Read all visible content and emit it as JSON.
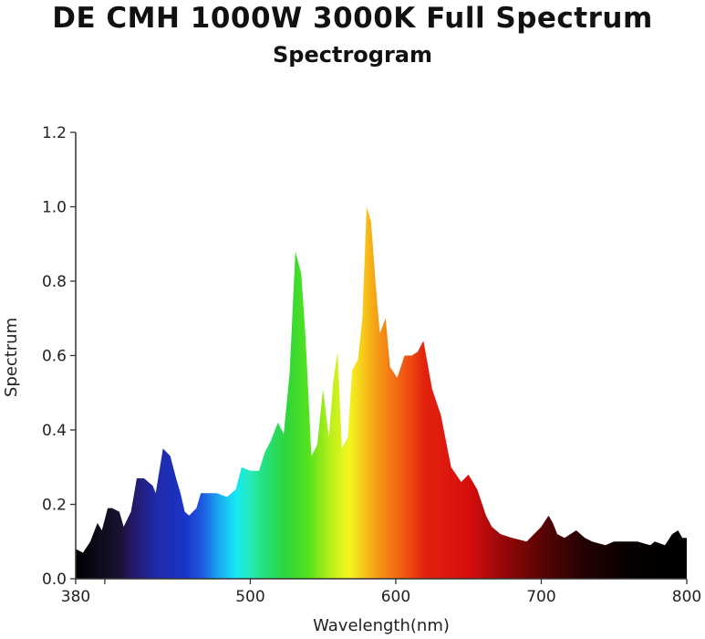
{
  "title": "DE CMH 1000W 3000K Full Spectrum",
  "subtitle": "Spectrogram",
  "chart_data": {
    "type": "area",
    "xlabel": "Wavelength(nm)",
    "ylabel": "Spectrum",
    "xlim": [
      380,
      800
    ],
    "ylim": [
      0,
      1.2
    ],
    "x_ticks": [
      "380",
      "500",
      "600",
      "700",
      "800"
    ],
    "y_ticks": [
      "0.0",
      "0.2",
      "0.4",
      "0.6",
      "0.8",
      "1.0",
      "1.2"
    ],
    "fill": "visible-spectrum gradient by wavelength",
    "grid": false,
    "series": [
      {
        "x": [
          380,
          385,
          390,
          395,
          398,
          402,
          405,
          410,
          413,
          418,
          422,
          427,
          433,
          435,
          440,
          445,
          449,
          452,
          455,
          458,
          463,
          466,
          471,
          477,
          484,
          490,
          494,
          500,
          506,
          510,
          514,
          519,
          523,
          527,
          531,
          535,
          538,
          542,
          546,
          550,
          554,
          557,
          560,
          563,
          567,
          570,
          574,
          577,
          580,
          583,
          586,
          589,
          593,
          596,
          601,
          606,
          611,
          615,
          619,
          625,
          631,
          638,
          645,
          650,
          656,
          662,
          666,
          672,
          680,
          690,
          700,
          705,
          708,
          711,
          716,
          720,
          724,
          730,
          735,
          744,
          750,
          759,
          766,
          775,
          778,
          785,
          790,
          794,
          797,
          800
        ],
        "y": [
          0.08,
          0.07,
          0.1,
          0.15,
          0.13,
          0.19,
          0.19,
          0.18,
          0.14,
          0.18,
          0.27,
          0.27,
          0.25,
          0.23,
          0.35,
          0.33,
          0.27,
          0.23,
          0.18,
          0.17,
          0.19,
          0.23,
          0.23,
          0.23,
          0.22,
          0.24,
          0.3,
          0.29,
          0.29,
          0.34,
          0.37,
          0.42,
          0.39,
          0.55,
          0.88,
          0.82,
          0.65,
          0.33,
          0.36,
          0.51,
          0.38,
          0.53,
          0.61,
          0.35,
          0.38,
          0.56,
          0.59,
          0.7,
          1.0,
          0.96,
          0.8,
          0.66,
          0.7,
          0.57,
          0.54,
          0.6,
          0.6,
          0.61,
          0.64,
          0.51,
          0.44,
          0.3,
          0.26,
          0.28,
          0.24,
          0.17,
          0.14,
          0.12,
          0.11,
          0.1,
          0.14,
          0.17,
          0.15,
          0.12,
          0.11,
          0.12,
          0.13,
          0.11,
          0.1,
          0.09,
          0.1,
          0.1,
          0.1,
          0.09,
          0.1,
          0.09,
          0.12,
          0.13,
          0.11,
          0.11
        ]
      }
    ]
  }
}
